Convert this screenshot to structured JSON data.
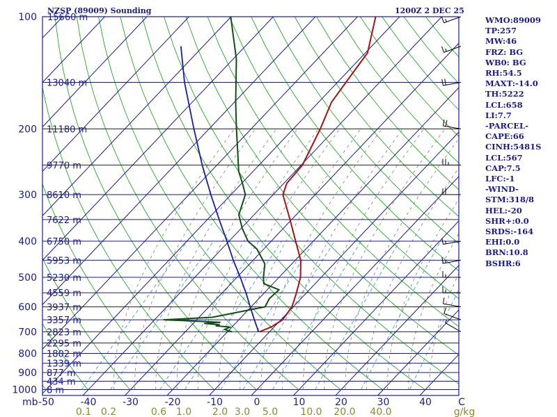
{
  "header": {
    "station": "NZSP (89009) Sounding",
    "time": "1200Z  2 DEC 25"
  },
  "stats": [
    "WMO:89009",
    "TP:257",
    "MW:46",
    "FRZ: BG",
    "WB0: BG",
    "RH:54.5",
    "MAXT:-14.0",
    "TH:5222",
    "LCL:658",
    "LI:7.7",
    "-PARCEL-",
    "CAPE:66",
    "CINH:5481S",
    "LCL:567",
    "CAP:7.5",
    "LFC:-1",
    "-WIND-",
    "STM:318/8",
    "HEL:-20",
    "SHR+:0.0",
    "SRDS:-164",
    "EHI:0.0",
    "BRN:10.8",
    "BSHR:6"
  ],
  "colors": {
    "border": "#1a1a8c",
    "isobar": "#1a1a8c",
    "isotherm": "#1a1a8c",
    "dry_adiabat": "#22aa22",
    "mixing_ratio": "#4aa8d8",
    "moist_adiabat": "#8a8a8a",
    "temperature": "#aa1111",
    "dewpoint": "#0f4f0f",
    "parcel": "#1a1aaa",
    "pressure_label": "#1a1a8c",
    "temp_label": "#1a1a8c",
    "mixing_label": "#8a8a2a"
  },
  "chart_data": {
    "type": "skew-t",
    "pressure_ticks": [
      "100",
      "200",
      "300",
      "400",
      "500",
      "600",
      "700",
      "800",
      "900",
      "1000"
    ],
    "temp_ticks": [
      "-50",
      "-40",
      "-30",
      "-20",
      "-10",
      "0",
      "10",
      "20",
      "30",
      "40",
      "C"
    ],
    "mixing_ratio_ticks": [
      "0.1",
      "0.2",
      "0.6",
      "1.0",
      "2.0",
      "3.0",
      "5.0",
      "10.0",
      "20.0",
      "40.0",
      "g/kg"
    ],
    "pressure_unit_label": "mb",
    "height_labels": [
      {
        "p": 100,
        "text": "15660 m"
      },
      {
        "p": 150,
        "text": "13040 m"
      },
      {
        "p": 200,
        "text": "11180 m"
      },
      {
        "p": 250,
        "text": "9770 m"
      },
      {
        "p": 300,
        "text": "8610 m"
      },
      {
        "p": 350,
        "text": "7622 m"
      },
      {
        "p": 400,
        "text": "6750 m"
      },
      {
        "p": 450,
        "text": "5953 m"
      },
      {
        "p": 500,
        "text": "5230 m"
      },
      {
        "p": 550,
        "text": "4559 m"
      },
      {
        "p": 600,
        "text": "3937 m"
      },
      {
        "p": 650,
        "text": "3357 m"
      },
      {
        "p": 700,
        "text": "2823 m"
      },
      {
        "p": 750,
        "text": "2295 m"
      },
      {
        "p": 800,
        "text": "1802 m"
      },
      {
        "p": 850,
        "text": "1339 m"
      },
      {
        "p": 900,
        "text": "877 m"
      },
      {
        "p": 950,
        "text": "434 m"
      },
      {
        "p": 1000,
        "text": "8 m"
      }
    ],
    "temperature": [
      [
        700,
        -12.4
      ],
      [
        680,
        -10.7
      ],
      [
        650,
        -9.6
      ],
      [
        600,
        -10.3
      ],
      [
        550,
        -12.4
      ],
      [
        500,
        -14.9
      ],
      [
        450,
        -18.7
      ],
      [
        400,
        -24.2
      ],
      [
        350,
        -30.4
      ],
      [
        300,
        -37.7
      ],
      [
        280,
        -39.3
      ],
      [
        250,
        -39.7
      ],
      [
        200,
        -43.6
      ],
      [
        170,
        -46.9
      ],
      [
        150,
        -48.0
      ],
      [
        125,
        -49.5
      ],
      [
        100,
        -55.7
      ]
    ],
    "dewpoint": [
      [
        700,
        -18.9
      ],
      [
        690,
        -21.2
      ],
      [
        680,
        -20.4
      ],
      [
        675,
        -24.0
      ],
      [
        670,
        -23.5
      ],
      [
        665,
        -27.3
      ],
      [
        660,
        -23.9
      ],
      [
        650,
        -37.8
      ],
      [
        640,
        -26.8
      ],
      [
        600,
        -16.7
      ],
      [
        570,
        -17.5
      ],
      [
        540,
        -17.2
      ],
      [
        520,
        -22.2
      ],
      [
        500,
        -23.7
      ],
      [
        460,
        -26.4
      ],
      [
        420,
        -31.6
      ],
      [
        400,
        -35.5
      ],
      [
        370,
        -39.7
      ],
      [
        340,
        -43.6
      ],
      [
        300,
        -46.6
      ],
      [
        280,
        -49.8
      ],
      [
        260,
        -53.4
      ],
      [
        230,
        -58.1
      ],
      [
        200,
        -63.5
      ],
      [
        170,
        -69.6
      ],
      [
        130,
        -79.2
      ],
      [
        100,
        -90.1
      ]
    ],
    "parcel": [
      [
        700,
        -12.6
      ],
      [
        650,
        -16.3
      ],
      [
        600,
        -20.2
      ],
      [
        550,
        -24.4
      ],
      [
        500,
        -29.2
      ],
      [
        450,
        -34.7
      ],
      [
        400,
        -40.5
      ],
      [
        350,
        -47.2
      ],
      [
        300,
        -54.8
      ],
      [
        250,
        -63.5
      ],
      [
        200,
        -73.6
      ],
      [
        150,
        -86.3
      ],
      [
        120,
        -95.3
      ]
    ],
    "wind_barbs": [
      {
        "p": 700,
        "dir": 300,
        "spd": 5
      },
      {
        "p": 650,
        "dir": 290,
        "spd": 10
      },
      {
        "p": 600,
        "dir": 280,
        "spd": 10
      },
      {
        "p": 550,
        "dir": 270,
        "spd": 15
      },
      {
        "p": 500,
        "dir": 270,
        "spd": 15
      },
      {
        "p": 450,
        "dir": 260,
        "spd": 15
      },
      {
        "p": 400,
        "dir": 260,
        "spd": 15
      },
      {
        "p": 300,
        "dir": 270,
        "spd": 20
      },
      {
        "p": 250,
        "dir": 270,
        "spd": 25
      },
      {
        "p": 200,
        "dir": 280,
        "spd": 20
      },
      {
        "p": 150,
        "dir": 260,
        "spd": 20
      },
      {
        "p": 120,
        "dir": 250,
        "spd": 15
      },
      {
        "p": 100,
        "dir": 250,
        "spd": 15
      }
    ]
  }
}
